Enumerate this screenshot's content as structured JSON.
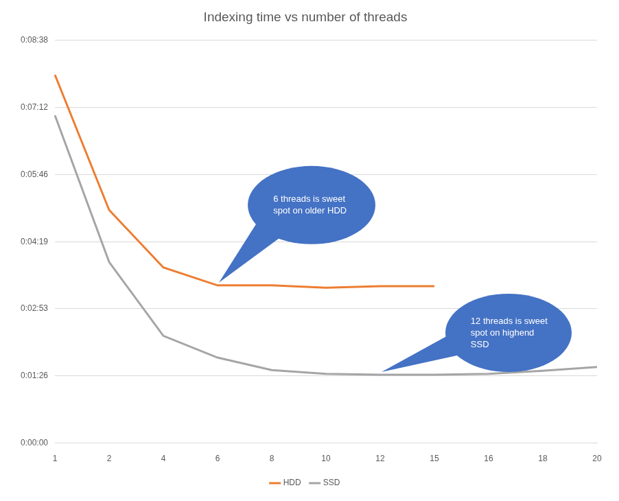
{
  "chart_data": {
    "type": "line",
    "title": "Indexing time vs number of threads",
    "categories": [
      1,
      2,
      4,
      6,
      8,
      10,
      12,
      15,
      16,
      18,
      20
    ],
    "series": [
      {
        "name": "HDD",
        "color": "#ed7d31",
        "values": [
          474,
          300,
          226,
          203,
          203,
          200,
          202,
          202,
          null,
          null,
          null
        ]
      },
      {
        "name": "SSD",
        "color": "#a5a5a5",
        "values": [
          422,
          233,
          138,
          110,
          94,
          89,
          88,
          88,
          89,
          93,
          98
        ]
      }
    ],
    "ylim": [
      0,
      518.4
    ],
    "yticks": [
      {
        "value": 0,
        "label": "0:00:00"
      },
      {
        "value": 86.4,
        "label": "0:01:26"
      },
      {
        "value": 172.8,
        "label": "0:02:53"
      },
      {
        "value": 259.2,
        "label": "0:04:19"
      },
      {
        "value": 345.6,
        "label": "0:05:46"
      },
      {
        "value": 432,
        "label": "0:07:12"
      },
      {
        "value": 518.4,
        "label": "0:08:38"
      }
    ],
    "grid": true,
    "legend": "bottom",
    "annotations": [
      {
        "text": "6 threads is sweet spot on older HDD",
        "series": "HDD",
        "x": 6
      },
      {
        "text": "12 threads is sweet spot on highend SSD",
        "series": "SSD",
        "x": 12
      }
    ]
  }
}
